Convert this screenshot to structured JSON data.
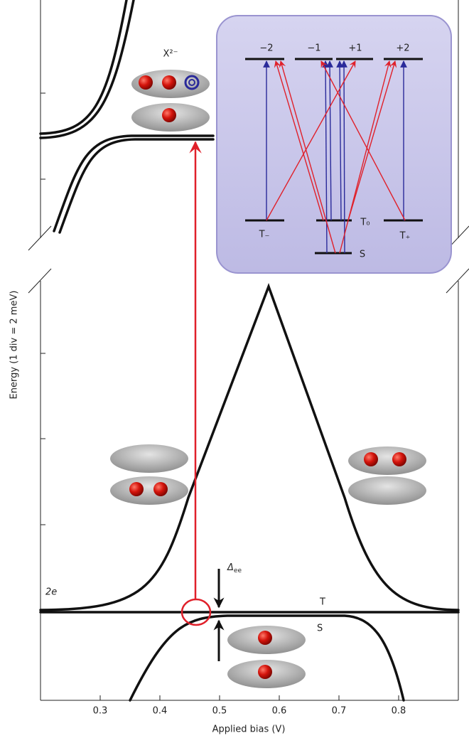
{
  "chart_data": {
    "type": "line",
    "xlabel": "Applied bias (V)",
    "ylabel": "Energy  (1 div = 2 meV)",
    "xlim": [
      0.2,
      0.9
    ],
    "xticks": [
      0.3,
      0.4,
      0.5,
      0.6,
      0.7,
      0.8
    ],
    "annotations": {
      "charge_state": "2e",
      "triplet": "T",
      "singlet": "S",
      "exchange": {
        "symbol": "Δ",
        "subscript": "ee"
      },
      "trion": "X²⁻",
      "inset": {
        "upper_levels": [
          "−2",
          "−1",
          "+1",
          "+2"
        ],
        "lower_levels": [
          "T₋",
          "T₀",
          "T₊",
          "S"
        ]
      }
    }
  }
}
